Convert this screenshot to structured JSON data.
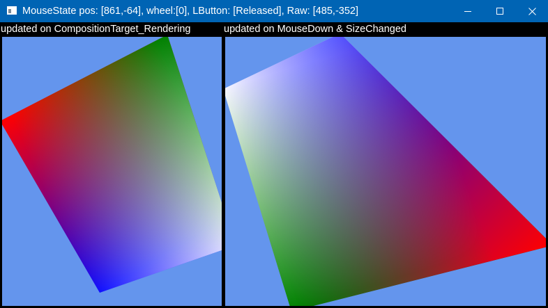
{
  "window": {
    "title": "MouseState pos: [861,-64], wheel:[0], LButton: [Released], Raw: [485,-352]",
    "titlebar_color": "#0064b4",
    "buttons": {
      "minimize": "minimize-icon",
      "maximize": "maximize-icon",
      "close": "close-icon"
    }
  },
  "panes": {
    "left": {
      "label": "updated on CompositionTarget_Rendering",
      "background": "#6495ed"
    },
    "right": {
      "label": "updated on MouseDown & SizeChanged",
      "background": "#6495ed"
    }
  },
  "gradient_colors": {
    "red": "#ff0000",
    "green": "#008000",
    "blue": "#0000ff",
    "white": "#ffffff"
  }
}
